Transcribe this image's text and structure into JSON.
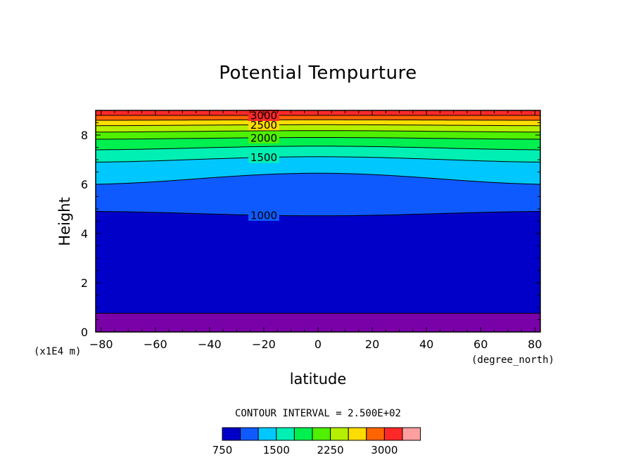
{
  "chart_data": {
    "type": "contour",
    "title": "Potential Tempurture",
    "xlabel": "latitude",
    "ylabel": "Height",
    "x_units": "(degree_north)",
    "y_units": "(x1E4 m)",
    "xlim": [
      -82,
      82
    ],
    "ylim": [
      0,
      9
    ],
    "xticks": [
      -80,
      -60,
      -40,
      -20,
      0,
      20,
      40,
      60,
      80
    ],
    "xtick_labels": [
      "−80",
      "−60",
      "−40",
      "−20",
      "0",
      "20",
      "40",
      "60",
      "80"
    ],
    "yticks": [
      0,
      2,
      4,
      6,
      8
    ],
    "ytick_labels": [
      "0",
      "2",
      "4",
      "6",
      "8"
    ],
    "contour_interval_text": "CONTOUR INTERVAL = 2.500E+02",
    "contour_levels": [
      750,
      1000,
      1250,
      1500,
      1750,
      2000,
      2250,
      2500,
      2750,
      3000,
      3250
    ],
    "contour_labels": [
      {
        "text": "1000",
        "value": 1000
      },
      {
        "text": "1500",
        "value": 1500
      },
      {
        "text": "2000",
        "value": 2000
      },
      {
        "text": "2500",
        "value": 2500
      },
      {
        "text": "3000",
        "value": 3000
      }
    ],
    "contour_heights": [
      {
        "value": 750,
        "edge": 0.76,
        "center": 0.76
      },
      {
        "value": 1000,
        "edge": 4.9,
        "center": 4.72
      },
      {
        "value": 1250,
        "edge": 6.0,
        "center": 6.45
      },
      {
        "value": 1500,
        "edge": 6.9,
        "center": 7.12
      },
      {
        "value": 1750,
        "edge": 7.4,
        "center": 7.55
      },
      {
        "value": 2000,
        "edge": 7.83,
        "center": 7.9
      },
      {
        "value": 2250,
        "edge": 8.12,
        "center": 8.18
      },
      {
        "value": 2500,
        "edge": 8.38,
        "center": 8.42
      },
      {
        "value": 2750,
        "edge": 8.6,
        "center": 8.62
      },
      {
        "value": 3000,
        "edge": 8.8,
        "center": 8.8
      }
    ],
    "fill_colors": [
      "#7a00a8",
      "#0000c8",
      "#0f5aff",
      "#00c8ff",
      "#00f0b4",
      "#00f050",
      "#4ff000",
      "#b4f000",
      "#ffdc00",
      "#ff6400",
      "#ff2828",
      "#ffa0a0"
    ],
    "colorbar": {
      "colors": [
        "#0000c8",
        "#0f5aff",
        "#00c8ff",
        "#00f0b4",
        "#00f050",
        "#4ff000",
        "#b4f000",
        "#ffdc00",
        "#ff6400",
        "#ff2828",
        "#ffa0a0"
      ],
      "tick_labels": [
        "750",
        "1500",
        "2250",
        "3000"
      ],
      "tick_values": [
        750,
        1500,
        2250,
        3000
      ]
    }
  }
}
